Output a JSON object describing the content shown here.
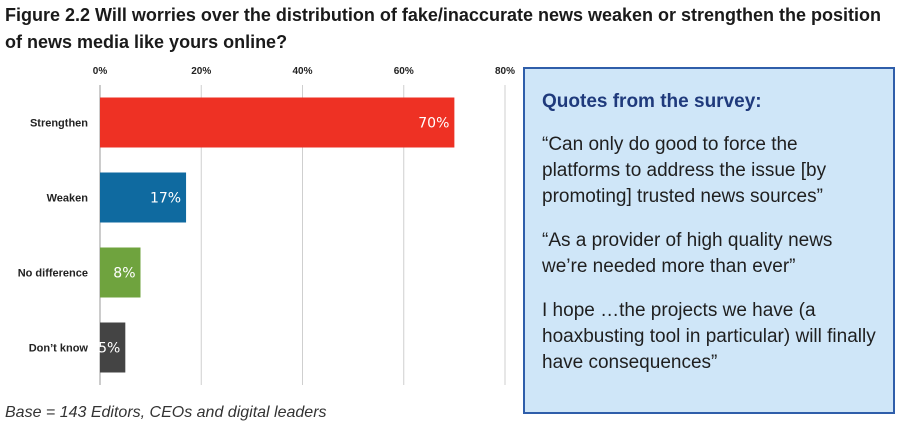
{
  "title": "Figure 2.2 Will worries over the distribution of fake/inaccurate news weaken or strengthen the position of news media like yours online?",
  "footnote": "Base = 143 Editors, CEOs and digital leaders",
  "quotes": {
    "heading": "Quotes from the survey:",
    "items": [
      "“Can only do good to force the platforms to address the issue [by promoting] trusted news sources”",
      "“As a provider of high quality news we’re needed more than ever”",
      "I hope …the projects we have (a hoaxbusting tool in particular) will finally have consequences”"
    ]
  },
  "chart_data": {
    "type": "bar",
    "orientation": "horizontal",
    "categories": [
      "Strengthen",
      "Weaken",
      "No difference",
      "Don’t know"
    ],
    "values": [
      70,
      17,
      8,
      5
    ],
    "labels": [
      "70%",
      "17%",
      "8%",
      "5%"
    ],
    "colors": [
      "#ee3124",
      "#0f6aa0",
      "#6fa33e",
      "#444444"
    ],
    "xlim": [
      0,
      80
    ],
    "xticks": [
      0,
      20,
      40,
      60,
      80
    ],
    "xtick_labels": [
      "0%",
      "20%",
      "40%",
      "60%",
      "80%"
    ],
    "xaxis_position": "top",
    "grid": true,
    "legend": "none"
  }
}
